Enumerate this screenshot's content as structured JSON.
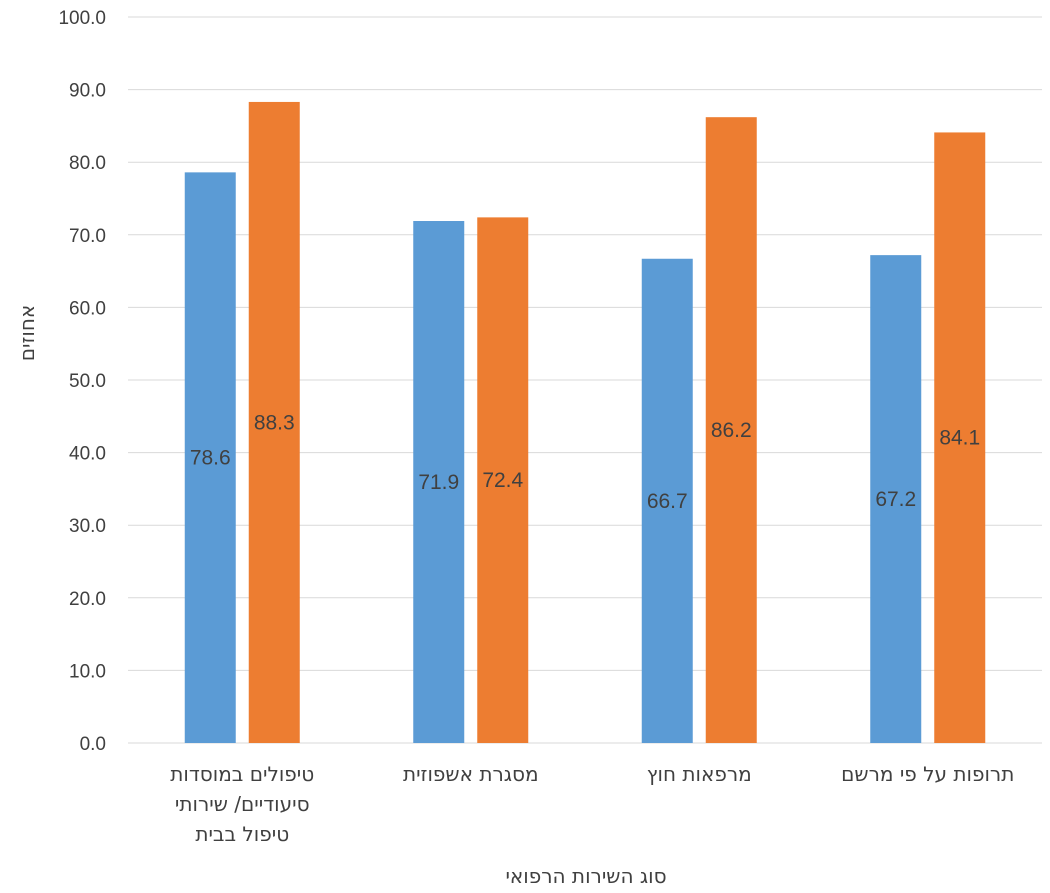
{
  "chart_data": {
    "type": "bar",
    "categories": [
      [
        "טיפולים במוסדות",
        "סיעודיים/ שירותי",
        "טיפול בבית"
      ],
      [
        "מסגרת אשפוזית"
      ],
      [
        "מרפאות חוץ"
      ],
      [
        "תרופות על פי מרשם"
      ]
    ],
    "series": [
      {
        "values": [
          78.6,
          71.9,
          66.7,
          67.2
        ],
        "color": "#5b9bd5"
      },
      {
        "values": [
          88.3,
          72.4,
          86.2,
          84.1
        ],
        "color": "#ed7d31"
      }
    ],
    "xlabel": "סוג השירות הרפואי",
    "ylabel": "אחוזים",
    "ylim": [
      0,
      100
    ],
    "y_ticks": [
      0,
      10,
      20,
      30,
      40,
      50,
      60,
      70,
      80,
      90,
      100
    ],
    "tick_decimals": 1,
    "data_label_position": "center",
    "grid": true,
    "legend": "none"
  }
}
